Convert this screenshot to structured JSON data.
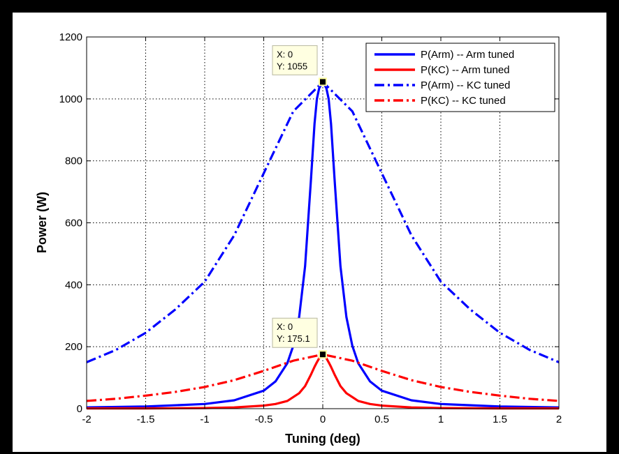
{
  "chart_data": {
    "type": "line",
    "title": "",
    "xlabel": "Tuning (deg)",
    "ylabel": "Power (W)",
    "xlim": [
      -2,
      2
    ],
    "ylim": [
      0,
      1200
    ],
    "xticks": [
      -2,
      -1.5,
      -1,
      -0.5,
      0,
      0.5,
      1,
      1.5,
      2
    ],
    "yticks": [
      0,
      200,
      400,
      600,
      800,
      1000,
      1200
    ],
    "xtick_labels": [
      "-2",
      "-1.5",
      "-1",
      "-0.5",
      "0",
      "0.5",
      "1",
      "1.5",
      "2"
    ],
    "ytick_labels": [
      "0",
      "200",
      "400",
      "600",
      "800",
      "1000",
      "1200"
    ],
    "grid": true,
    "legend_position": "top-right",
    "series": [
      {
        "name": "P(Arm) -- Arm tuned",
        "color": "#0000ff",
        "style": "solid",
        "x": [
          -2,
          -1.5,
          -1,
          -0.75,
          -0.5,
          -0.4,
          -0.3,
          -0.25,
          -0.2,
          -0.15,
          -0.1,
          -0.07,
          -0.05,
          -0.03,
          0,
          0.03,
          0.05,
          0.07,
          0.1,
          0.15,
          0.2,
          0.25,
          0.3,
          0.4,
          0.5,
          0.75,
          1,
          1.5,
          2
        ],
        "y": [
          4,
          7,
          15,
          27,
          58,
          88,
          147,
          203,
          296,
          460,
          740,
          920,
          1000,
          1035,
          1055,
          1035,
          1000,
          920,
          740,
          460,
          296,
          203,
          147,
          88,
          58,
          27,
          15,
          7,
          4
        ]
      },
      {
        "name": "P(KC) -- Arm tuned",
        "color": "#ff0000",
        "style": "solid",
        "x": [
          -2,
          -1.5,
          -1,
          -0.75,
          -0.5,
          -0.4,
          -0.3,
          -0.2,
          -0.15,
          -0.1,
          -0.07,
          -0.05,
          -0.03,
          0,
          0.03,
          0.05,
          0.07,
          0.1,
          0.15,
          0.2,
          0.3,
          0.4,
          0.5,
          0.75,
          1,
          1.5,
          2
        ],
        "y": [
          1,
          1,
          2,
          4,
          10,
          15,
          25,
          50,
          73,
          110,
          135,
          150,
          163,
          175.1,
          163,
          150,
          135,
          110,
          73,
          50,
          25,
          15,
          10,
          4,
          2,
          1,
          1
        ]
      },
      {
        "name": "P(Arm) -- KC tuned",
        "color": "#0000ff",
        "style": "dashdot",
        "x": [
          -2,
          -1.75,
          -1.5,
          -1.25,
          -1,
          -0.75,
          -0.5,
          -0.25,
          0,
          0.25,
          0.5,
          0.75,
          1,
          1.25,
          1.5,
          1.75,
          2
        ],
        "y": [
          150,
          190,
          245,
          320,
          410,
          560,
          760,
          960,
          1055,
          960,
          760,
          560,
          410,
          320,
          245,
          190,
          150
        ]
      },
      {
        "name": "P(KC) -- KC tuned",
        "color": "#ff0000",
        "style": "dashdot",
        "x": [
          -2,
          -1.75,
          -1.5,
          -1.25,
          -1,
          -0.75,
          -0.5,
          -0.25,
          0,
          0.25,
          0.5,
          0.75,
          1,
          1.25,
          1.5,
          1.75,
          2
        ],
        "y": [
          25,
          32,
          42,
          54,
          70,
          92,
          122,
          155,
          175.1,
          155,
          122,
          92,
          70,
          54,
          42,
          32,
          25
        ]
      }
    ],
    "annotations": [
      {
        "x": 0,
        "y": 1055,
        "line1": "X: 0",
        "line2": "Y: 1055"
      },
      {
        "x": 0,
        "y": 175.1,
        "line1": "X: 0",
        "line2": "Y: 175.1"
      }
    ]
  }
}
